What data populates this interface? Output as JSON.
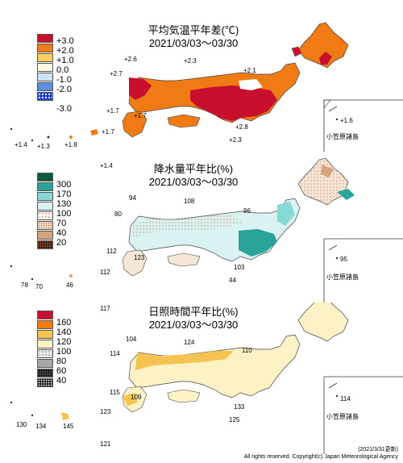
{
  "temperature": {
    "title": "平均気温平年差(℃)",
    "period": "2021/03/03～03/30",
    "legend": [
      {
        "label": "+3.0",
        "color": "#c8102e"
      },
      {
        "label": "+2.0",
        "color": "#f07b14"
      },
      {
        "label": "+1.0",
        "color": "#ffd060"
      },
      {
        "label": "0.0",
        "color": "#fffbe0"
      },
      {
        "label": "-1.0",
        "color": "#cce4f7"
      },
      {
        "label": "-2.0",
        "color": "#5b8fe0"
      },
      {
        "label": "-3.0",
        "color": "#1d3fd6"
      }
    ],
    "stations": [
      "+2.6",
      "+2.3",
      "+2.7",
      "+2.1",
      "+1.7",
      "+1.7",
      "+1.6",
      "+2.8",
      "+2.3",
      "+1.7",
      "+1.4",
      "+1.3",
      "+1.8",
      "+1.4"
    ],
    "ogasawara": "小笠原諸島"
  },
  "precipitation": {
    "title": "降水量平年比(%)",
    "period": "2021/03/03～03/30",
    "legend": [
      {
        "label": "300",
        "color": "#0b5a3c"
      },
      {
        "label": "170",
        "color": "#2aa39a"
      },
      {
        "label": "130",
        "color": "#86d8d4"
      },
      {
        "label": "100",
        "color": "#d9f2f2"
      },
      {
        "label": "70",
        "color": "#f6e6d8"
      },
      {
        "label": "40",
        "color": "#d9a37a"
      },
      {
        "label": "20",
        "color": "#8a4a23"
      }
    ],
    "stations": [
      "94",
      "108",
      "80",
      "86",
      "95",
      "112",
      "123",
      "103",
      "44",
      "78",
      "70",
      "46",
      "112"
    ],
    "ogasawara": "小笠原諸島"
  },
  "sunshine": {
    "title": "日照時間平年比(%)",
    "period": "2021/03/03～03/30",
    "legend": [
      {
        "label": "160",
        "color": "#c8102e"
      },
      {
        "label": "140",
        "color": "#f07b14"
      },
      {
        "label": "120",
        "color": "#f6c350"
      },
      {
        "label": "100",
        "color": "#fdf2c6"
      },
      {
        "label": "80",
        "color": "#e9e9e9"
      },
      {
        "label": "60",
        "color": "#a8a8a8"
      },
      {
        "label": "40",
        "color": "#4b4b4b"
      }
    ],
    "stations": [
      "117",
      "104",
      "124",
      "114",
      "110",
      "114",
      "115",
      "109",
      "133",
      "125",
      "130",
      "134",
      "145",
      "123",
      "121"
    ],
    "ogasawara": "小笠原諸島"
  },
  "footer": {
    "date": "(2021/3/31更新)",
    "copyright": "All rights reserved. Copyright(c) Japan Meteorological Agency"
  }
}
